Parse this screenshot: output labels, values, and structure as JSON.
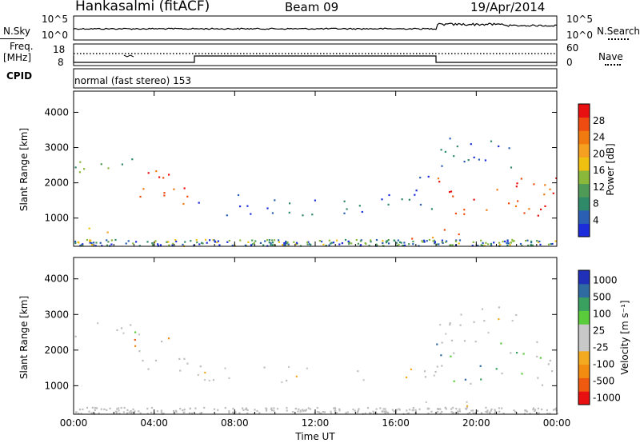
{
  "header": {
    "station": "Hankasalmi (fitACF)",
    "beam": "Beam 09",
    "date": "19/Apr/2014"
  },
  "noise_panel": {
    "left_label": "N.Sky",
    "right_label": "N.Search",
    "left_ticks": [
      "10^5",
      "10^0"
    ],
    "right_ticks": [
      "10^5",
      "10^0"
    ]
  },
  "freq_panel": {
    "left_label_line1": "Freq.",
    "left_label_line2": "[MHz]",
    "left_ticks": [
      "18",
      "8"
    ],
    "right_label": "Nave",
    "right_ticks": [
      "60",
      "0"
    ]
  },
  "cpid": {
    "label": "CPID",
    "program": "normal (fast stereo) 153"
  },
  "colors": {
    "power": [
      "#1c2cdb",
      "#2a5fb4",
      "#2f8a6a",
      "#4f9a57",
      "#8ab83a",
      "#f0c010",
      "#f5a020",
      "#f07a10",
      "#ee4c10",
      "#e81010"
    ],
    "velocity": [
      "#e81010",
      "#ee5a10",
      "#f28c10",
      "#f3aa20",
      "#c8c8c8",
      "#c8c8c8",
      "#5acb3a",
      "#3aa060",
      "#2f6aa0",
      "#2030b8"
    ],
    "grey_scatter": "#bdbdbd"
  },
  "chart_data": [
    {
      "type": "heatmap",
      "name": "power",
      "ylabel": "Slant Range [km]",
      "xlabel": "",
      "ylim": [
        200,
        4600
      ],
      "yticks": [
        "1000",
        "2000",
        "3000",
        "4000"
      ],
      "xlim": [
        0,
        24
      ],
      "colorbar": {
        "label": "Power [dB]",
        "range": [
          0,
          32
        ],
        "ticks": [
          "4",
          "8",
          "12",
          "16",
          "20",
          "24",
          "28"
        ]
      },
      "regions": [
        {
          "t0": 0.0,
          "t1": 3.5,
          "r0": 2300,
          "r1": 2900,
          "level": 3
        },
        {
          "t0": 3.0,
          "t1": 6.0,
          "r0": 1200,
          "r1": 2400,
          "level": 8
        },
        {
          "t0": 6.0,
          "t1": 16.0,
          "r0": 1100,
          "r1": 1700,
          "level": 1
        },
        {
          "t0": 16.0,
          "t1": 18.0,
          "r0": 1200,
          "r1": 2300,
          "level": 1
        },
        {
          "t0": 18.0,
          "t1": 24.0,
          "r0": 900,
          "r1": 2200,
          "level": 8
        },
        {
          "t0": 18.0,
          "t1": 22.0,
          "r0": 2200,
          "r1": 3300,
          "level": 1
        },
        {
          "t0": 16.5,
          "t1": 20.0,
          "r0": 400,
          "r1": 700,
          "level": 7
        },
        {
          "t0": 0.0,
          "t1": 2.5,
          "r0": 550,
          "r1": 800,
          "level": 5
        }
      ]
    },
    {
      "type": "heatmap",
      "name": "velocity",
      "ylabel": "Slant Range [km]",
      "xlabel": "Time UT",
      "ylim": [
        200,
        4600
      ],
      "yticks": [
        "1000",
        "2000",
        "3000",
        "4000"
      ],
      "xticks": [
        "00:00",
        "04:00",
        "08:00",
        "12:00",
        "16:00",
        "20:00",
        "00:00"
      ],
      "xlim": [
        0,
        24
      ],
      "colorbar": {
        "label": "Velocity [m s⁻¹]",
        "ticks": [
          "1000",
          "500",
          "100",
          "25",
          "-25",
          "-100",
          "-500",
          "-1000"
        ]
      },
      "regions": [
        {
          "t0": 0.0,
          "t1": 3.5,
          "r0": 2300,
          "r1": 2900,
          "level": 5
        },
        {
          "t0": 3.0,
          "t1": 6.0,
          "r0": 1300,
          "r1": 2400,
          "level": 2
        },
        {
          "t0": 6.0,
          "t1": 18.0,
          "r0": 1100,
          "r1": 1600,
          "level": 4
        },
        {
          "t0": 18.0,
          "t1": 24.0,
          "r0": 1000,
          "r1": 2300,
          "level": 7
        },
        {
          "t0": 18.0,
          "t1": 22.0,
          "r0": 2200,
          "r1": 3300,
          "level": 4
        },
        {
          "t0": 16.5,
          "t1": 20.0,
          "r0": 450,
          "r1": 650,
          "level": 4
        }
      ]
    }
  ]
}
